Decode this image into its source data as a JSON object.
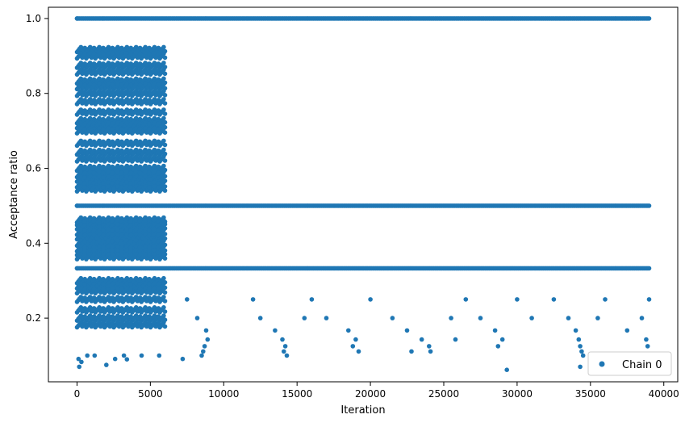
{
  "chart_data": {
    "type": "scatter",
    "title": "",
    "xlabel": "Iteration",
    "ylabel": "Acceptance ratio",
    "xlim": [
      -1950,
      40950
    ],
    "ylim": [
      0.03,
      1.03
    ],
    "x_ticks": [
      0,
      5000,
      10000,
      15000,
      20000,
      25000,
      30000,
      35000,
      40000
    ],
    "x_tick_labels": [
      "0",
      "5000",
      "10000",
      "15000",
      "20000",
      "25000",
      "30000",
      "35000",
      "40000"
    ],
    "y_ticks": [
      0.2,
      0.4,
      0.6,
      0.8,
      1.0
    ],
    "y_tick_labels": [
      "0.2",
      "0.4",
      "0.6",
      "0.8",
      "1.0"
    ],
    "grid": false,
    "legend": {
      "position": "bottom-right",
      "entries": [
        "Chain 0"
      ]
    },
    "series": [
      {
        "name": "Chain 0",
        "color": "#1f77b4",
        "marker": "circle",
        "note_structure": "dense band 0-6000 with many levels; after 6000 points mostly on discrete levels 1.0, 0.5, 0.333, 0.25, 0.2, 0.167, 0.143, 0.125, 0.111, 0.1",
        "segments": [
          {
            "x_range": [
              0,
              39000
            ],
            "y": 1.0
          },
          {
            "x_range": [
              0,
              39000
            ],
            "y": 0.5
          },
          {
            "x_range": [
              0,
              39000
            ],
            "y": 0.333
          },
          {
            "x_range": [
              0,
              6000
            ],
            "y": 0.917
          },
          {
            "x_range": [
              0,
              6000
            ],
            "y": 0.9
          },
          {
            "x_range": [
              0,
              6000
            ],
            "y": 0.875
          },
          {
            "x_range": [
              0,
              6000
            ],
            "y": 0.857
          },
          {
            "x_range": [
              0,
              6000
            ],
            "y": 0.833
          },
          {
            "x_range": [
              0,
              6000
            ],
            "y": 0.818
          },
          {
            "x_range": [
              0,
              6000
            ],
            "y": 0.8
          },
          {
            "x_range": [
              0,
              6000
            ],
            "y": 0.778
          },
          {
            "x_range": [
              0,
              6000
            ],
            "y": 0.75
          },
          {
            "x_range": [
              0,
              6000
            ],
            "y": 0.727
          },
          {
            "x_range": [
              0,
              6000
            ],
            "y": 0.714
          },
          {
            "x_range": [
              0,
              6000
            ],
            "y": 0.7
          },
          {
            "x_range": [
              0,
              6000
            ],
            "y": 0.667
          },
          {
            "x_range": [
              0,
              6000
            ],
            "y": 0.643
          },
          {
            "x_range": [
              0,
              6000
            ],
            "y": 0.625
          },
          {
            "x_range": [
              0,
              6000
            ],
            "y": 0.6
          },
          {
            "x_range": [
              0,
              6000
            ],
            "y": 0.583
          },
          {
            "x_range": [
              0,
              6000
            ],
            "y": 0.571
          },
          {
            "x_range": [
              0,
              6000
            ],
            "y": 0.556
          },
          {
            "x_range": [
              0,
              6000
            ],
            "y": 0.545
          },
          {
            "x_range": [
              0,
              6000
            ],
            "y": 0.462
          },
          {
            "x_range": [
              0,
              6000
            ],
            "y": 0.455
          },
          {
            "x_range": [
              0,
              6000
            ],
            "y": 0.444
          },
          {
            "x_range": [
              0,
              6000
            ],
            "y": 0.429
          },
          {
            "x_range": [
              0,
              6000
            ],
            "y": 0.417
          },
          {
            "x_range": [
              0,
              6000
            ],
            "y": 0.4
          },
          {
            "x_range": [
              0,
              6000
            ],
            "y": 0.385
          },
          {
            "x_range": [
              0,
              6000
            ],
            "y": 0.375
          },
          {
            "x_range": [
              0,
              6000
            ],
            "y": 0.364
          },
          {
            "x_range": [
              0,
              6000
            ],
            "y": 0.3
          },
          {
            "x_range": [
              0,
              6000
            ],
            "y": 0.286
          },
          {
            "x_range": [
              0,
              6000
            ],
            "y": 0.273
          },
          {
            "x_range": [
              0,
              6000
            ],
            "y": 0.25
          },
          {
            "x_range": [
              0,
              6000
            ],
            "y": 0.222
          },
          {
            "x_range": [
              0,
              6000
            ],
            "y": 0.2
          },
          {
            "x_range": [
              0,
              6000
            ],
            "y": 0.182
          }
        ],
        "points": [
          [
            0,
            1.0
          ],
          [
            0,
            0.5
          ],
          [
            0,
            0.333
          ],
          [
            1500,
            0.917
          ],
          [
            3000,
            0.9
          ],
          [
            4500,
            0.8
          ],
          [
            2000,
            0.75
          ],
          [
            1000,
            0.7
          ],
          [
            3500,
            0.667
          ],
          [
            500,
            0.6
          ],
          [
            5000,
            0.571
          ],
          [
            2500,
            0.545
          ],
          [
            4000,
            0.462
          ],
          [
            1500,
            0.444
          ],
          [
            3000,
            0.4
          ],
          [
            5500,
            0.375
          ],
          [
            800,
            0.3
          ],
          [
            2200,
            0.286
          ],
          [
            4200,
            0.25
          ],
          [
            1800,
            0.2
          ],
          [
            5800,
            0.182
          ],
          [
            100,
            0.091
          ],
          [
            300,
            0.083
          ],
          [
            700,
            0.1
          ],
          [
            1200,
            0.1
          ],
          [
            2600,
            0.091
          ],
          [
            3400,
            0.09
          ],
          [
            4400,
            0.1
          ],
          [
            5600,
            0.1
          ],
          [
            150,
            0.07
          ],
          [
            2000,
            0.075
          ],
          [
            3200,
            0.1
          ],
          [
            7500,
            0.25
          ],
          [
            8200,
            0.2
          ],
          [
            8800,
            0.167
          ],
          [
            8900,
            0.143
          ],
          [
            8700,
            0.125
          ],
          [
            8600,
            0.111
          ],
          [
            8500,
            0.1
          ],
          [
            7200,
            0.091
          ],
          [
            12000,
            0.25
          ],
          [
            12500,
            0.2
          ],
          [
            13500,
            0.167
          ],
          [
            14000,
            0.143
          ],
          [
            14200,
            0.125
          ],
          [
            14100,
            0.111
          ],
          [
            14300,
            0.1
          ],
          [
            15500,
            0.2
          ],
          [
            16000,
            0.25
          ],
          [
            17000,
            0.2
          ],
          [
            18500,
            0.167
          ],
          [
            19000,
            0.143
          ],
          [
            18800,
            0.125
          ],
          [
            19200,
            0.111
          ],
          [
            20000,
            0.25
          ],
          [
            21500,
            0.2
          ],
          [
            22500,
            0.167
          ],
          [
            23500,
            0.143
          ],
          [
            24000,
            0.125
          ],
          [
            24100,
            0.111
          ],
          [
            22800,
            0.111
          ],
          [
            25500,
            0.2
          ],
          [
            25800,
            0.143
          ],
          [
            26500,
            0.25
          ],
          [
            27500,
            0.2
          ],
          [
            28500,
            0.167
          ],
          [
            29000,
            0.143
          ],
          [
            28700,
            0.125
          ],
          [
            29300,
            0.062
          ],
          [
            30000,
            0.25
          ],
          [
            31000,
            0.2
          ],
          [
            32500,
            0.25
          ],
          [
            33500,
            0.2
          ],
          [
            34000,
            0.167
          ],
          [
            34200,
            0.143
          ],
          [
            34300,
            0.125
          ],
          [
            34400,
            0.111
          ],
          [
            34500,
            0.1
          ],
          [
            34300,
            0.07
          ],
          [
            36000,
            0.25
          ],
          [
            35500,
            0.2
          ],
          [
            37500,
            0.167
          ],
          [
            38500,
            0.2
          ],
          [
            39000,
            0.25
          ],
          [
            38800,
            0.143
          ],
          [
            38900,
            0.125
          ],
          [
            38700,
            0.1
          ]
        ]
      }
    ]
  }
}
